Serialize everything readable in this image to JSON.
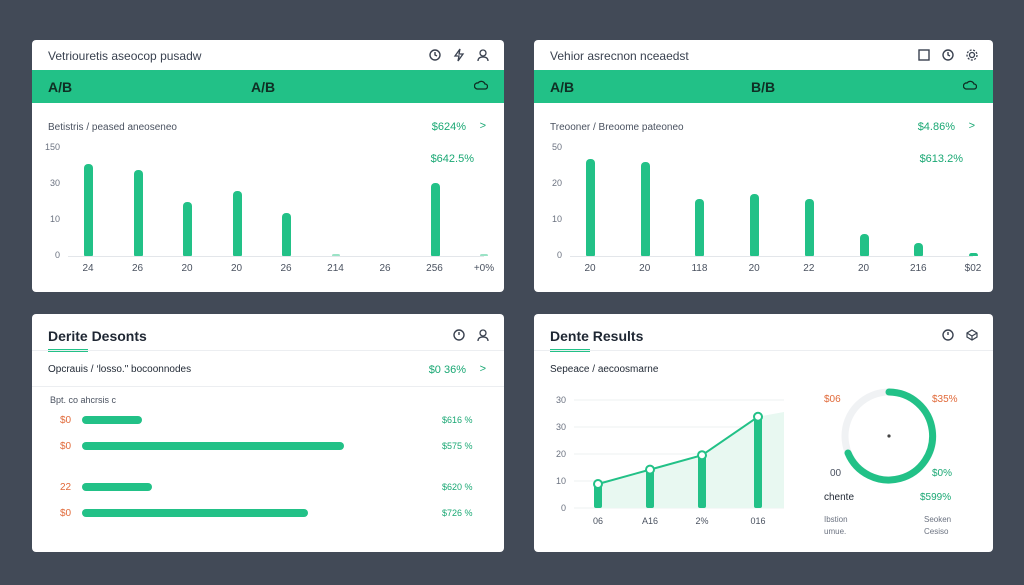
{
  "card_tl": {
    "title": "Vetriouretis aseocop pusadw",
    "variant_left": "A/B",
    "variant_center": "A/B",
    "subhead": "Betistris / peased   aneoseneo",
    "kpi1": "$624%",
    "kpi2": "$642.5%",
    "arrow": ">",
    "yticks": [
      "150",
      "30",
      "10",
      "0"
    ],
    "bars": [
      {
        "label": "24",
        "value": 34
      },
      {
        "label": "26",
        "value": 32
      },
      {
        "label": "20",
        "value": 20
      },
      {
        "label": "20",
        "value": 24
      },
      {
        "label": "26",
        "value": 16
      },
      {
        "label": "214",
        "value": 0.5
      },
      {
        "label": "26",
        "value": 0
      },
      {
        "label": "256",
        "value": 27
      },
      {
        "label": "+0%",
        "value": 0.5
      }
    ]
  },
  "card_tr": {
    "title": "Vehior asrecnon nceaedst",
    "variant_left": "A/B",
    "variant_center": "B/B",
    "subhead": "Treooner /  Breoome pateoneo",
    "kpi1": "$4.86%",
    "kpi2": "$613.2%",
    "arrow": ">",
    "yticks": [
      "50",
      "20",
      "10",
      "0"
    ],
    "bars": [
      {
        "label": "20",
        "value": 36
      },
      {
        "label": "20",
        "value": 35
      },
      {
        "label": "118",
        "value": 21
      },
      {
        "label": "20",
        "value": 23
      },
      {
        "label": "22",
        "value": 21
      },
      {
        "label": "20",
        "value": 8
      },
      {
        "label": "216",
        "value": 5
      },
      {
        "label": "$02",
        "value": 1
      }
    ]
  },
  "card_bl": {
    "title": "Derite Desonts",
    "subhead": "Opcrauis /  ‘losso.\"  bocoonnodes",
    "kpi1": "$0 36%",
    "arrow": ">",
    "section": "Bpt. co ahcrsis c",
    "rows": [
      {
        "label": "$0",
        "value": 60,
        "pct": "$616 %"
      },
      {
        "label": "$0",
        "value": 262,
        "pct": "$575 %"
      },
      {
        "label": "22",
        "value": 70,
        "pct": "$620 %"
      },
      {
        "label": "$0",
        "value": 226,
        "pct": "$726 %"
      }
    ]
  },
  "card_br": {
    "title": "Dente Results",
    "subhead": "Sepeace /  aecoosmarne",
    "chart_data": {
      "type": "line",
      "yticks": [
        "30",
        "30",
        "20",
        "10",
        "0"
      ],
      "x": [
        "06",
        "A16",
        "2%",
        "016"
      ],
      "values": [
        10,
        16,
        22,
        38
      ],
      "ylim": [
        0,
        45
      ]
    },
    "gauge": {
      "left_top": "$06",
      "right_top": "$35%",
      "left_bottom": "00",
      "right_bottom": "$0%",
      "caption": "chente",
      "value": "$599%",
      "foot_left": "Ibstion\numue.",
      "foot_right": "Seoken\nCesiso"
    }
  },
  "colors": {
    "accent": "#22c187",
    "background": "#424a57",
    "card": "#ffffff",
    "negative": "#e16a3a"
  }
}
